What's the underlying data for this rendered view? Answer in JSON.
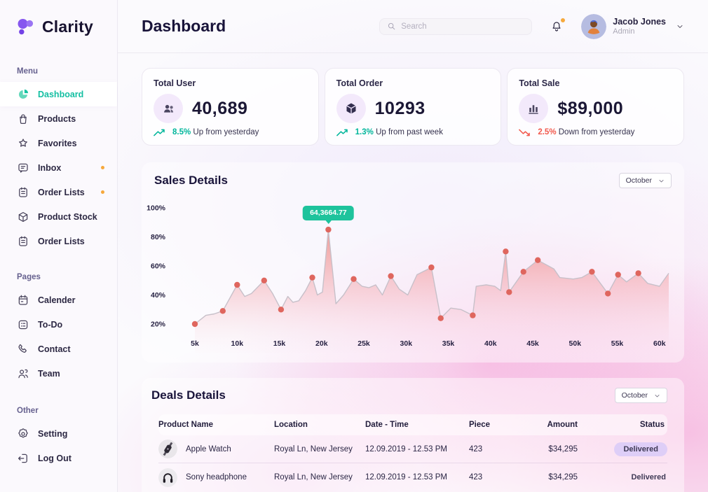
{
  "app": {
    "name": "Clarity"
  },
  "header": {
    "title": "Dashboard",
    "search_placeholder": "Search",
    "user": {
      "name": "Jacob Jones",
      "role": "Admin"
    }
  },
  "sidebar": {
    "groups": [
      {
        "label": "Menu",
        "items": [
          {
            "label": "Dashboard",
            "icon": "dashboard-icon",
            "active": true
          },
          {
            "label": "Products",
            "icon": "bag-icon"
          },
          {
            "label": "Favorites",
            "icon": "star-icon"
          },
          {
            "label": "Inbox",
            "icon": "chat-icon",
            "dot": true
          },
          {
            "label": "Order Lists",
            "icon": "clipboard-icon",
            "dot": true
          },
          {
            "label": "Product Stock",
            "icon": "cube-icon"
          },
          {
            "label": "Order Lists",
            "icon": "clipboard-icon"
          }
        ]
      },
      {
        "label": "Pages",
        "items": [
          {
            "label": "Calender",
            "icon": "calendar-icon"
          },
          {
            "label": "To-Do",
            "icon": "todo-icon"
          },
          {
            "label": "Contact",
            "icon": "phone-icon"
          },
          {
            "label": "Team",
            "icon": "team-icon"
          }
        ]
      },
      {
        "label": "Other",
        "items": [
          {
            "label": "Setting",
            "icon": "gear-icon"
          },
          {
            "label": "Log Out",
            "icon": "logout-icon"
          }
        ]
      }
    ]
  },
  "stats": [
    {
      "label": "Total User",
      "value": "40,689",
      "icon": "users-icon",
      "trend": {
        "direction": "up",
        "percent": "8.5%",
        "text": "Up from yesterday",
        "color": "#00b69b"
      }
    },
    {
      "label": "Total Order",
      "value": "10293",
      "icon": "box-icon",
      "trend": {
        "direction": "up",
        "percent": "1.3%",
        "text": "Up from past week",
        "color": "#00b69b"
      }
    },
    {
      "label": "Total Sale",
      "value": "$89,000",
      "icon": "bar-chart-icon",
      "trend": {
        "direction": "down",
        "percent": "2.5%",
        "text": "Down from yesterday",
        "color": "#f2594d"
      }
    }
  ],
  "sales": {
    "title": "Sales Details",
    "period": "October"
  },
  "chart_data": {
    "type": "area",
    "title": "Sales Details",
    "x_ticks": [
      "5k",
      "10k",
      "15k",
      "20k",
      "25k",
      "30k",
      "35k",
      "40k",
      "45k",
      "50k",
      "55k",
      "60k"
    ],
    "y_ticks": [
      "20%",
      "40%",
      "60%",
      "80%",
      "100%"
    ],
    "xlim": [
      5,
      61
    ],
    "ylim": [
      0,
      100
    ],
    "grid": false,
    "points": [
      [
        5,
        20,
        1
      ],
      [
        6.3,
        26,
        0
      ],
      [
        7.3,
        27,
        0
      ],
      [
        8.3,
        29,
        1
      ],
      [
        10,
        47,
        1
      ],
      [
        10.9,
        39,
        0
      ],
      [
        11.7,
        41,
        0
      ],
      [
        13.2,
        50,
        1
      ],
      [
        14.2,
        41,
        0
      ],
      [
        15.2,
        30,
        1
      ],
      [
        16,
        39,
        0
      ],
      [
        16.6,
        35,
        0
      ],
      [
        17.3,
        36,
        0
      ],
      [
        18.1,
        43,
        0
      ],
      [
        18.9,
        52,
        1
      ],
      [
        19.5,
        40,
        0
      ],
      [
        20.1,
        42,
        0
      ],
      [
        20.8,
        85,
        1
      ],
      [
        21.7,
        34,
        0
      ],
      [
        22.6,
        40,
        0
      ],
      [
        23.8,
        51,
        1
      ],
      [
        24.8,
        46,
        0
      ],
      [
        25.6,
        45,
        0
      ],
      [
        26.4,
        47,
        0
      ],
      [
        27.2,
        40,
        0
      ],
      [
        28.2,
        53,
        1
      ],
      [
        29.2,
        44,
        0
      ],
      [
        30.2,
        40,
        0
      ],
      [
        31.3,
        54,
        0
      ],
      [
        33,
        59,
        1
      ],
      [
        34.1,
        24,
        1
      ],
      [
        35.3,
        31,
        0
      ],
      [
        36.5,
        30,
        0
      ],
      [
        37.9,
        26,
        1
      ],
      [
        38.3,
        46,
        0
      ],
      [
        39.5,
        47,
        0
      ],
      [
        40.5,
        46,
        0
      ],
      [
        41.2,
        43,
        0
      ],
      [
        41.8,
        70,
        1
      ],
      [
        42.2,
        42,
        1
      ],
      [
        43.9,
        56,
        1
      ],
      [
        45.6,
        64,
        1
      ],
      [
        47.5,
        58,
        0
      ],
      [
        48.2,
        52,
        0
      ],
      [
        49.8,
        51,
        0
      ],
      [
        50.8,
        52,
        0
      ],
      [
        52,
        56,
        1
      ],
      [
        53.9,
        41,
        1
      ],
      [
        55.1,
        54,
        1
      ],
      [
        56.1,
        49,
        0
      ],
      [
        57.5,
        55,
        1
      ],
      [
        58.6,
        48,
        0
      ],
      [
        60,
        46,
        0
      ],
      [
        61.1,
        55,
        0
      ]
    ],
    "peak_tooltip": {
      "x": 20.8,
      "y_percent": 85,
      "value": "64,3664.77"
    },
    "colors": {
      "line": "#c7c0c9",
      "marker": "#df665e",
      "area_top": "#ef8078",
      "area_mid": "#f4aab2",
      "area_bottom": "#f8dcea",
      "tooltip_bg": "#1ec39c"
    }
  },
  "deals": {
    "title": "Deals Details",
    "period": "October",
    "columns": [
      "Product Name",
      "Location",
      "Date - Time",
      "Piece",
      "Amount",
      "Status"
    ],
    "rows": [
      {
        "product": "Apple Watch",
        "icon": "watch-icon",
        "location": "Royal Ln, New Jersey",
        "datetime": "12.09.2019 - 12.53 PM",
        "piece": "423",
        "amount": "$34,295",
        "status": "Delivered",
        "pill": true
      },
      {
        "product": "Sony headphone",
        "icon": "headphone-icon",
        "location": "Royal Ln, New Jersey",
        "datetime": "12.09.2019 - 12.53 PM",
        "piece": "423",
        "amount": "$34,295",
        "status": "Delivered",
        "pill": false
      }
    ]
  },
  "colors": {
    "brand_purple": "#8657ef",
    "active_teal": "#14bfa2",
    "trend_green": "#00b69b",
    "trend_red": "#f2594d",
    "notification_orange": "#f6a83b",
    "badge_bg": "#d8caf8"
  }
}
